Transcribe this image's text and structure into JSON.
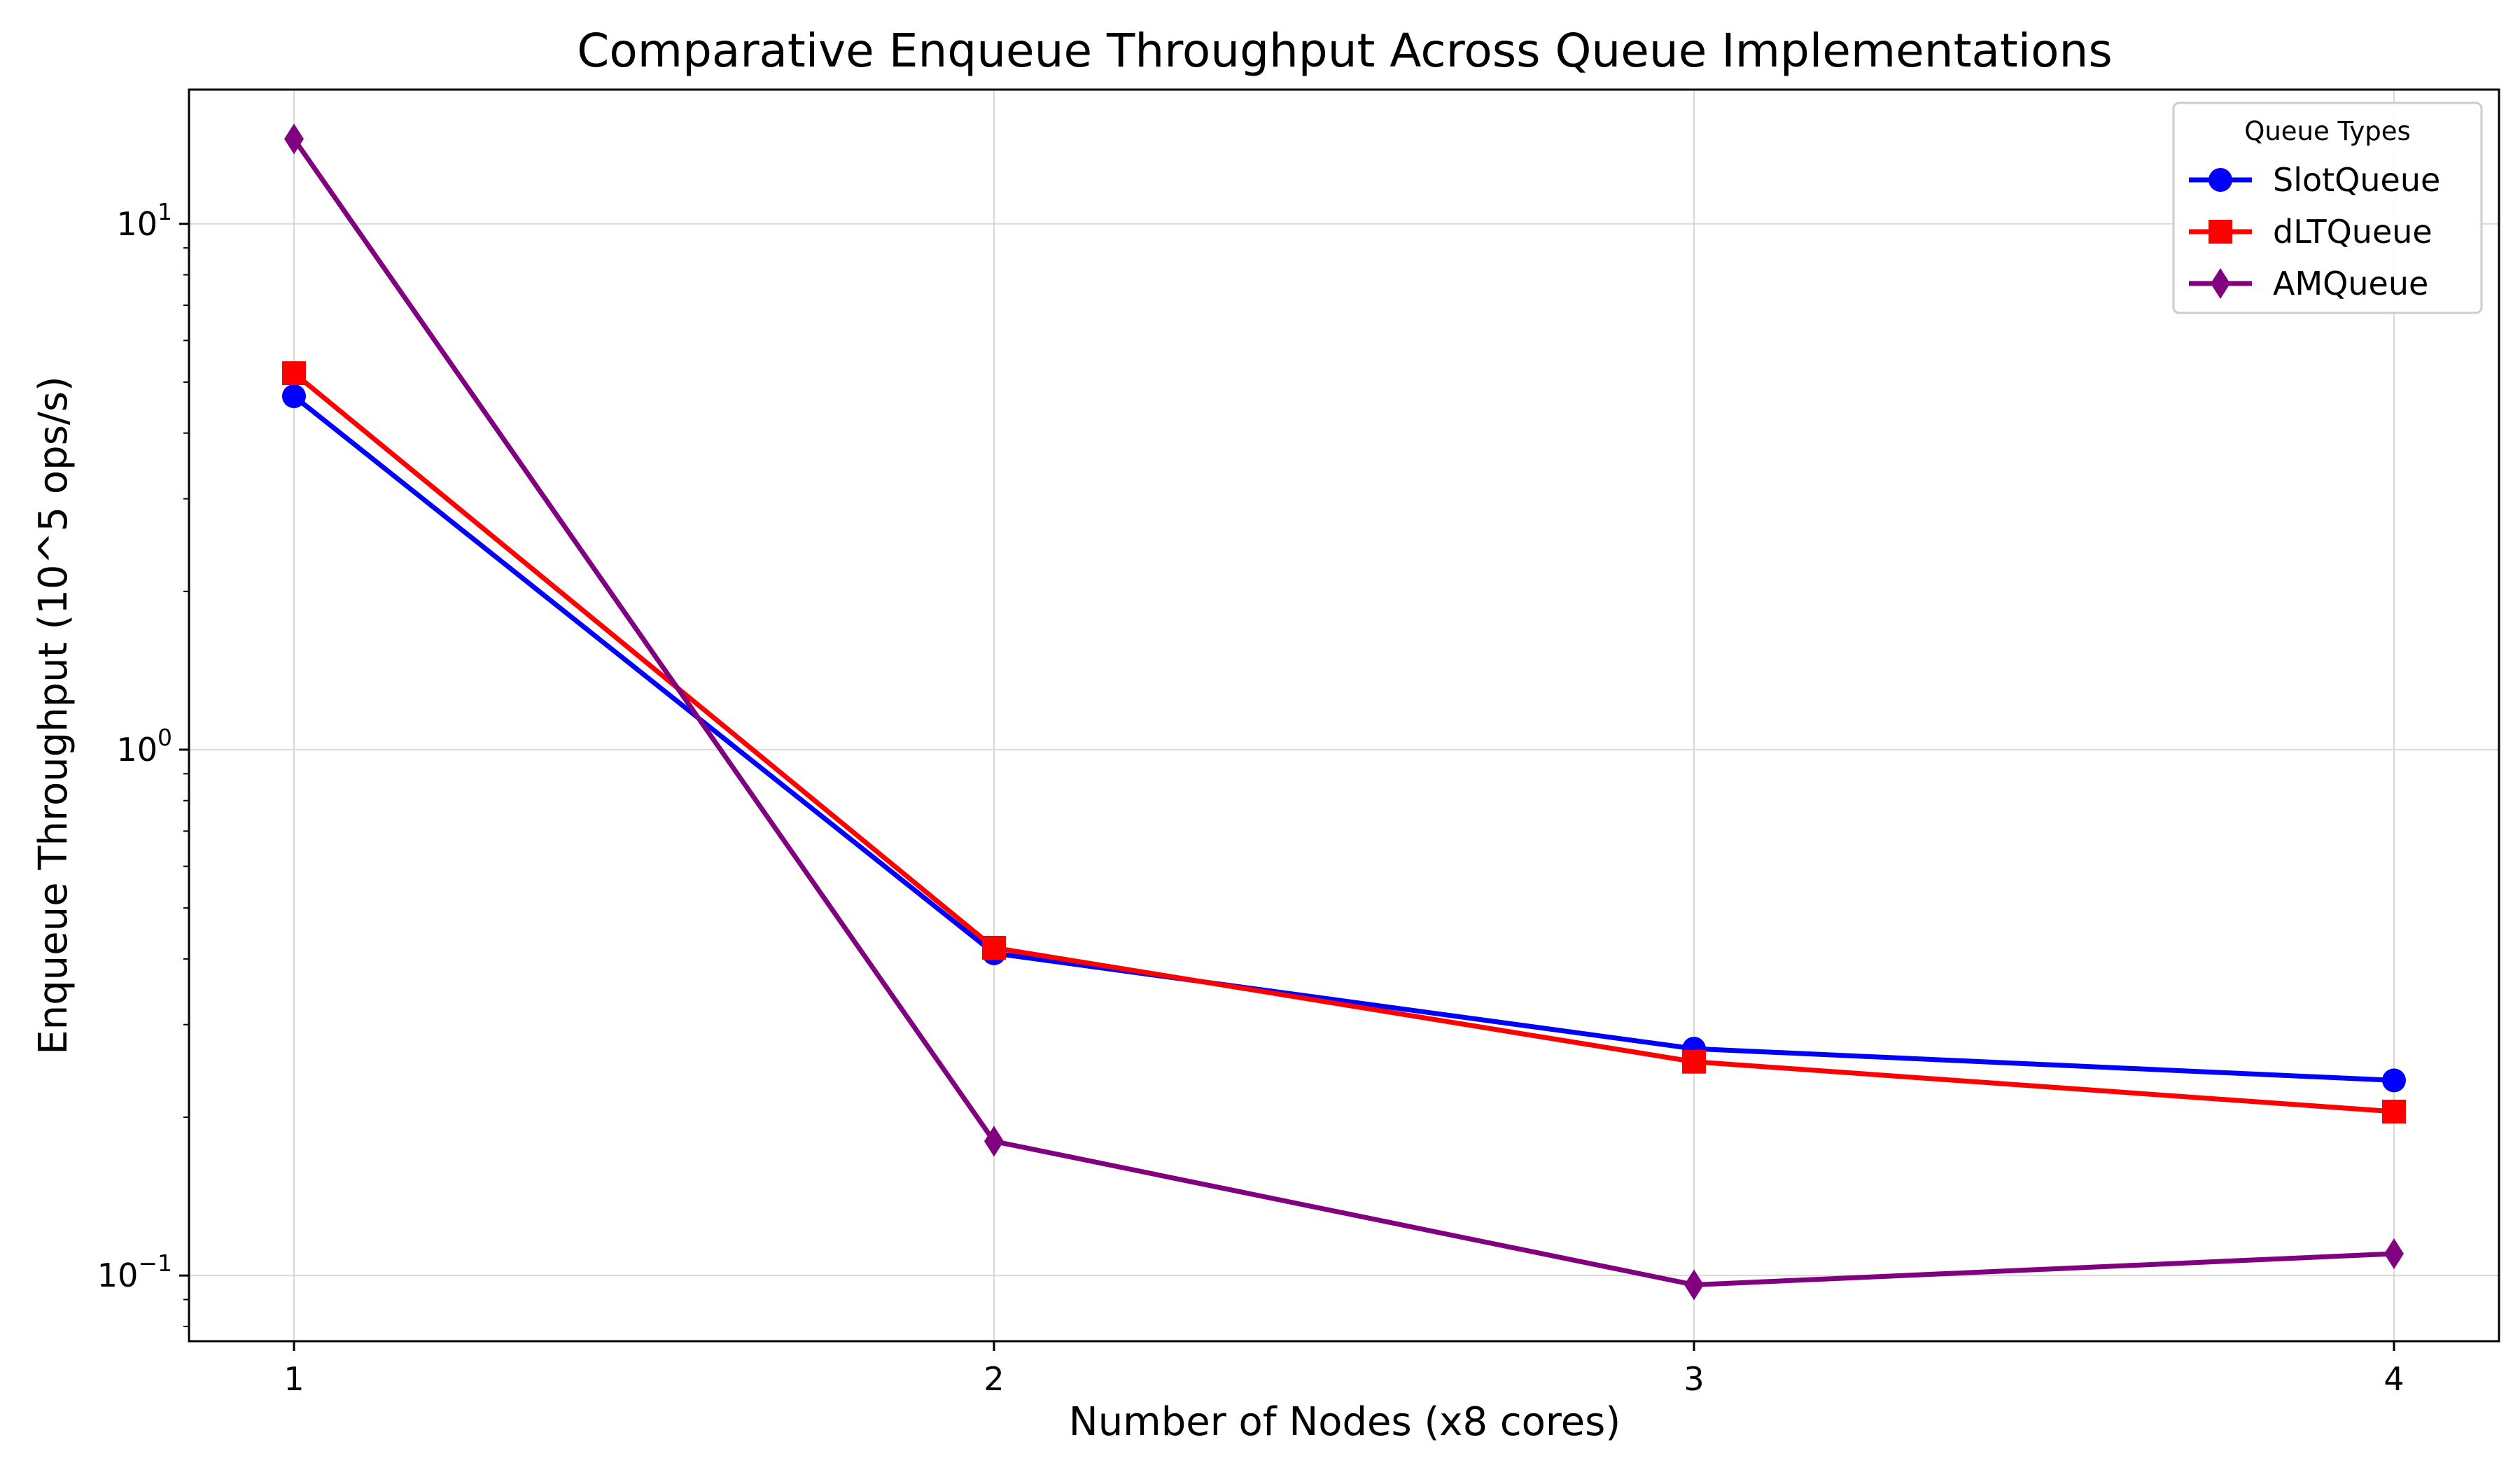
{
  "chart_data": {
    "type": "line",
    "title": "Comparative Enqueue Throughput Across Queue Implementations",
    "xlabel": "Number of Nodes (x8 cores)",
    "ylabel": "Enqueue Throughput (10^5 ops/s)",
    "x": [
      1,
      2,
      3,
      4
    ],
    "x_tick_labels": [
      "1",
      "2",
      "3",
      "4"
    ],
    "xlim": [
      0.85,
      4.15
    ],
    "yscale": "log",
    "ylim": [
      0.075,
      18
    ],
    "y_tick_labels": [
      {
        "value": 0.1,
        "base": "10",
        "exp": "−1"
      },
      {
        "value": 1,
        "base": "10",
        "exp": "0"
      },
      {
        "value": 10,
        "base": "10",
        "exp": "1"
      }
    ],
    "grid": true,
    "legend": {
      "title": "Queue Types",
      "position": "top-right"
    },
    "series": [
      {
        "name": "SlotQueue",
        "color": "#0000ff",
        "marker": "circle",
        "values": [
          4.7,
          0.41,
          0.27,
          0.235
        ]
      },
      {
        "name": "dLTQueue",
        "color": "#ff0000",
        "marker": "square",
        "values": [
          5.2,
          0.42,
          0.255,
          0.205
        ]
      },
      {
        "name": "AMQueue",
        "color": "#800080",
        "marker": "diamond",
        "values": [
          14.5,
          0.18,
          0.096,
          0.11
        ]
      }
    ]
  }
}
